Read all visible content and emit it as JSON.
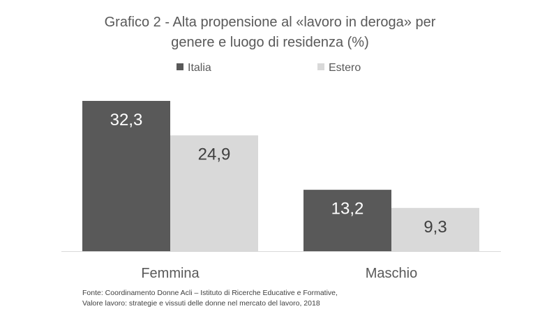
{
  "chart_data": {
    "type": "bar",
    "title_lines": [
      "Grafico 2 - Alta propensione al «lavoro in deroga» per",
      "genere e luogo di residenza (%)"
    ],
    "categories": [
      "Femmina",
      "Maschio"
    ],
    "series": [
      {
        "name": "Italia",
        "color": "#595959",
        "values": [
          32.3,
          13.2
        ],
        "labels": [
          "32,3",
          "13,2"
        ]
      },
      {
        "name": "Estero",
        "color": "#d9d9d9",
        "values": [
          24.9,
          9.3
        ],
        "labels": [
          "24,9",
          "9,3"
        ]
      }
    ],
    "xlabel": "",
    "ylabel": "",
    "ylim": [
      0,
      35
    ],
    "grid": false,
    "legend_position": "top"
  },
  "source": {
    "line1": "Fonte: Coordinamento Donne Acli – Istituto di Ricerche Educative e Formative,",
    "line2": "Valore lavoro: strategie e vissuti delle donne nel mercato del lavoro, 2018"
  }
}
